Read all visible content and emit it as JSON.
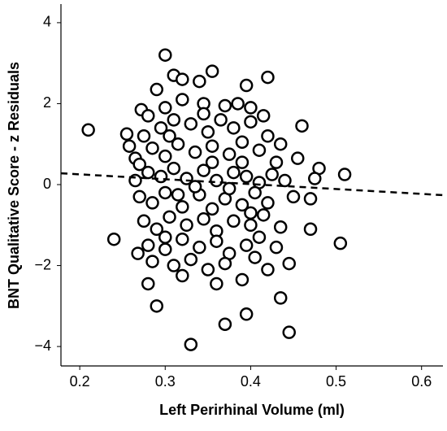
{
  "chart_data": {
    "type": "scatter",
    "x_label": "Left Perirhinal Volume (ml)",
    "y_label": "BNT Qualitative Score - z Residuals",
    "xlim": [
      0.178,
      0.625
    ],
    "ylim": [
      -4.48,
      4.46
    ],
    "xticks": [
      0.2,
      0.3,
      0.4,
      0.5,
      0.6
    ],
    "yticks": [
      {
        "value": -4,
        "label": "−4"
      },
      {
        "value": -2,
        "label": "−2"
      },
      0,
      2,
      4
    ],
    "grid": false,
    "marker_fill": "#ffffff",
    "marker_stroke": "#000000",
    "x": [
      0.21,
      0.24,
      0.255,
      0.258,
      0.265,
      0.268,
      0.272,
      0.28,
      0.29,
      0.3,
      0.31,
      0.33,
      0.37,
      0.395,
      0.445,
      0.435,
      0.42,
      0.395,
      0.355,
      0.46,
      0.47,
      0.505,
      0.51,
      0.48,
      0.475,
      0.455,
      0.47,
      0.445,
      0.43,
      0.29,
      0.34,
      0.32,
      0.28,
      0.3,
      0.32,
      0.345,
      0.37,
      0.385,
      0.4,
      0.415,
      0.275,
      0.295,
      0.31,
      0.33,
      0.35,
      0.365,
      0.38,
      0.4,
      0.42,
      0.435,
      0.27,
      0.285,
      0.3,
      0.315,
      0.335,
      0.355,
      0.375,
      0.39,
      0.41,
      0.43,
      0.265,
      0.28,
      0.295,
      0.31,
      0.325,
      0.345,
      0.36,
      0.38,
      0.395,
      0.41,
      0.425,
      0.44,
      0.27,
      0.285,
      0.3,
      0.32,
      0.34,
      0.355,
      0.37,
      0.39,
      0.405,
      0.42,
      0.45,
      0.275,
      0.29,
      0.305,
      0.325,
      0.345,
      0.36,
      0.38,
      0.4,
      0.415,
      0.435,
      0.28,
      0.3,
      0.32,
      0.34,
      0.36,
      0.375,
      0.395,
      0.41,
      0.285,
      0.31,
      0.33,
      0.35,
      0.37,
      0.39,
      0.405,
      0.42,
      0.32,
      0.36,
      0.305,
      0.345,
      0.39,
      0.335,
      0.375,
      0.355,
      0.315,
      0.4,
      0.3
    ],
    "y": [
      1.35,
      -1.35,
      1.25,
      0.95,
      0.65,
      -1.7,
      1.85,
      -2.45,
      -3.0,
      3.2,
      2.7,
      -3.95,
      -3.45,
      -3.2,
      -3.65,
      -2.8,
      2.65,
      2.45,
      2.8,
      1.45,
      -1.1,
      -1.45,
      0.25,
      0.4,
      0.15,
      0.65,
      -0.35,
      -1.95,
      -1.55,
      2.35,
      2.55,
      2.6,
      1.7,
      1.9,
      2.1,
      2.0,
      1.95,
      2.0,
      1.9,
      1.7,
      1.2,
      1.4,
      1.6,
      1.5,
      1.3,
      1.6,
      1.4,
      1.55,
      1.2,
      1.0,
      0.5,
      0.9,
      0.7,
      1.0,
      0.8,
      0.95,
      0.75,
      1.05,
      0.85,
      0.55,
      0.1,
      0.3,
      0.2,
      0.4,
      0.15,
      0.35,
      0.1,
      0.3,
      0.2,
      0.05,
      0.25,
      0.1,
      -0.3,
      -0.45,
      -0.2,
      -0.55,
      -0.25,
      -0.6,
      -0.35,
      -0.5,
      -0.2,
      -0.45,
      -0.3,
      -0.9,
      -1.1,
      -0.8,
      -1.0,
      -0.85,
      -1.15,
      -0.9,
      -1.0,
      -0.75,
      -1.05,
      -1.5,
      -1.6,
      -1.35,
      -1.55,
      -1.4,
      -1.7,
      -1.5,
      -1.3,
      -1.9,
      -2.0,
      -1.85,
      -2.1,
      -1.95,
      -2.35,
      -1.8,
      -2.1,
      -2.25,
      -2.45,
      1.2,
      1.75,
      0.55,
      -0.05,
      -0.1,
      0.55,
      -0.25,
      -0.7,
      -1.3
    ],
    "fit": {
      "x": [
        0.178,
        0.625
      ],
      "y": [
        0.28,
        -0.26
      ]
    }
  }
}
